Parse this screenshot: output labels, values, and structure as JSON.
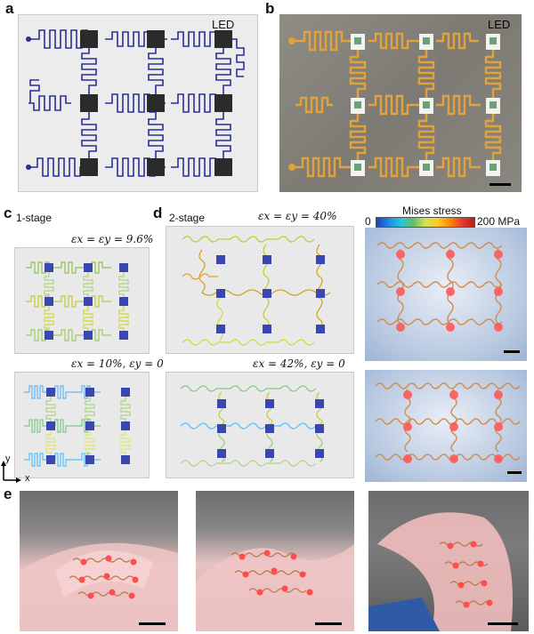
{
  "panels": {
    "a": "a",
    "b": "b",
    "c": "c",
    "d": "d",
    "e": "e"
  },
  "labels": {
    "led_a": "LED",
    "led_b": "LED",
    "one_stage": "1-stage",
    "two_stage": "2-stage",
    "strain_c_top": "εx = εy = 9.6%",
    "strain_c_bottom": "εx = 10%, εy = 0",
    "strain_d_top": "εx = εy = 40%",
    "strain_d_bottom": "εx = 42%, εy = 0",
    "colorbar_title": "Mises stress",
    "colorbar_min": "0",
    "colorbar_max": "200 MPa",
    "axis_y": "y",
    "axis_x": "x"
  },
  "colors": {
    "wire_blue": "#2a2f9a",
    "led_dark": "#2b2b2b",
    "led_blue": "#3a47b0",
    "gold": "#e2a23a",
    "panel_gray": "#e9e9e9"
  }
}
